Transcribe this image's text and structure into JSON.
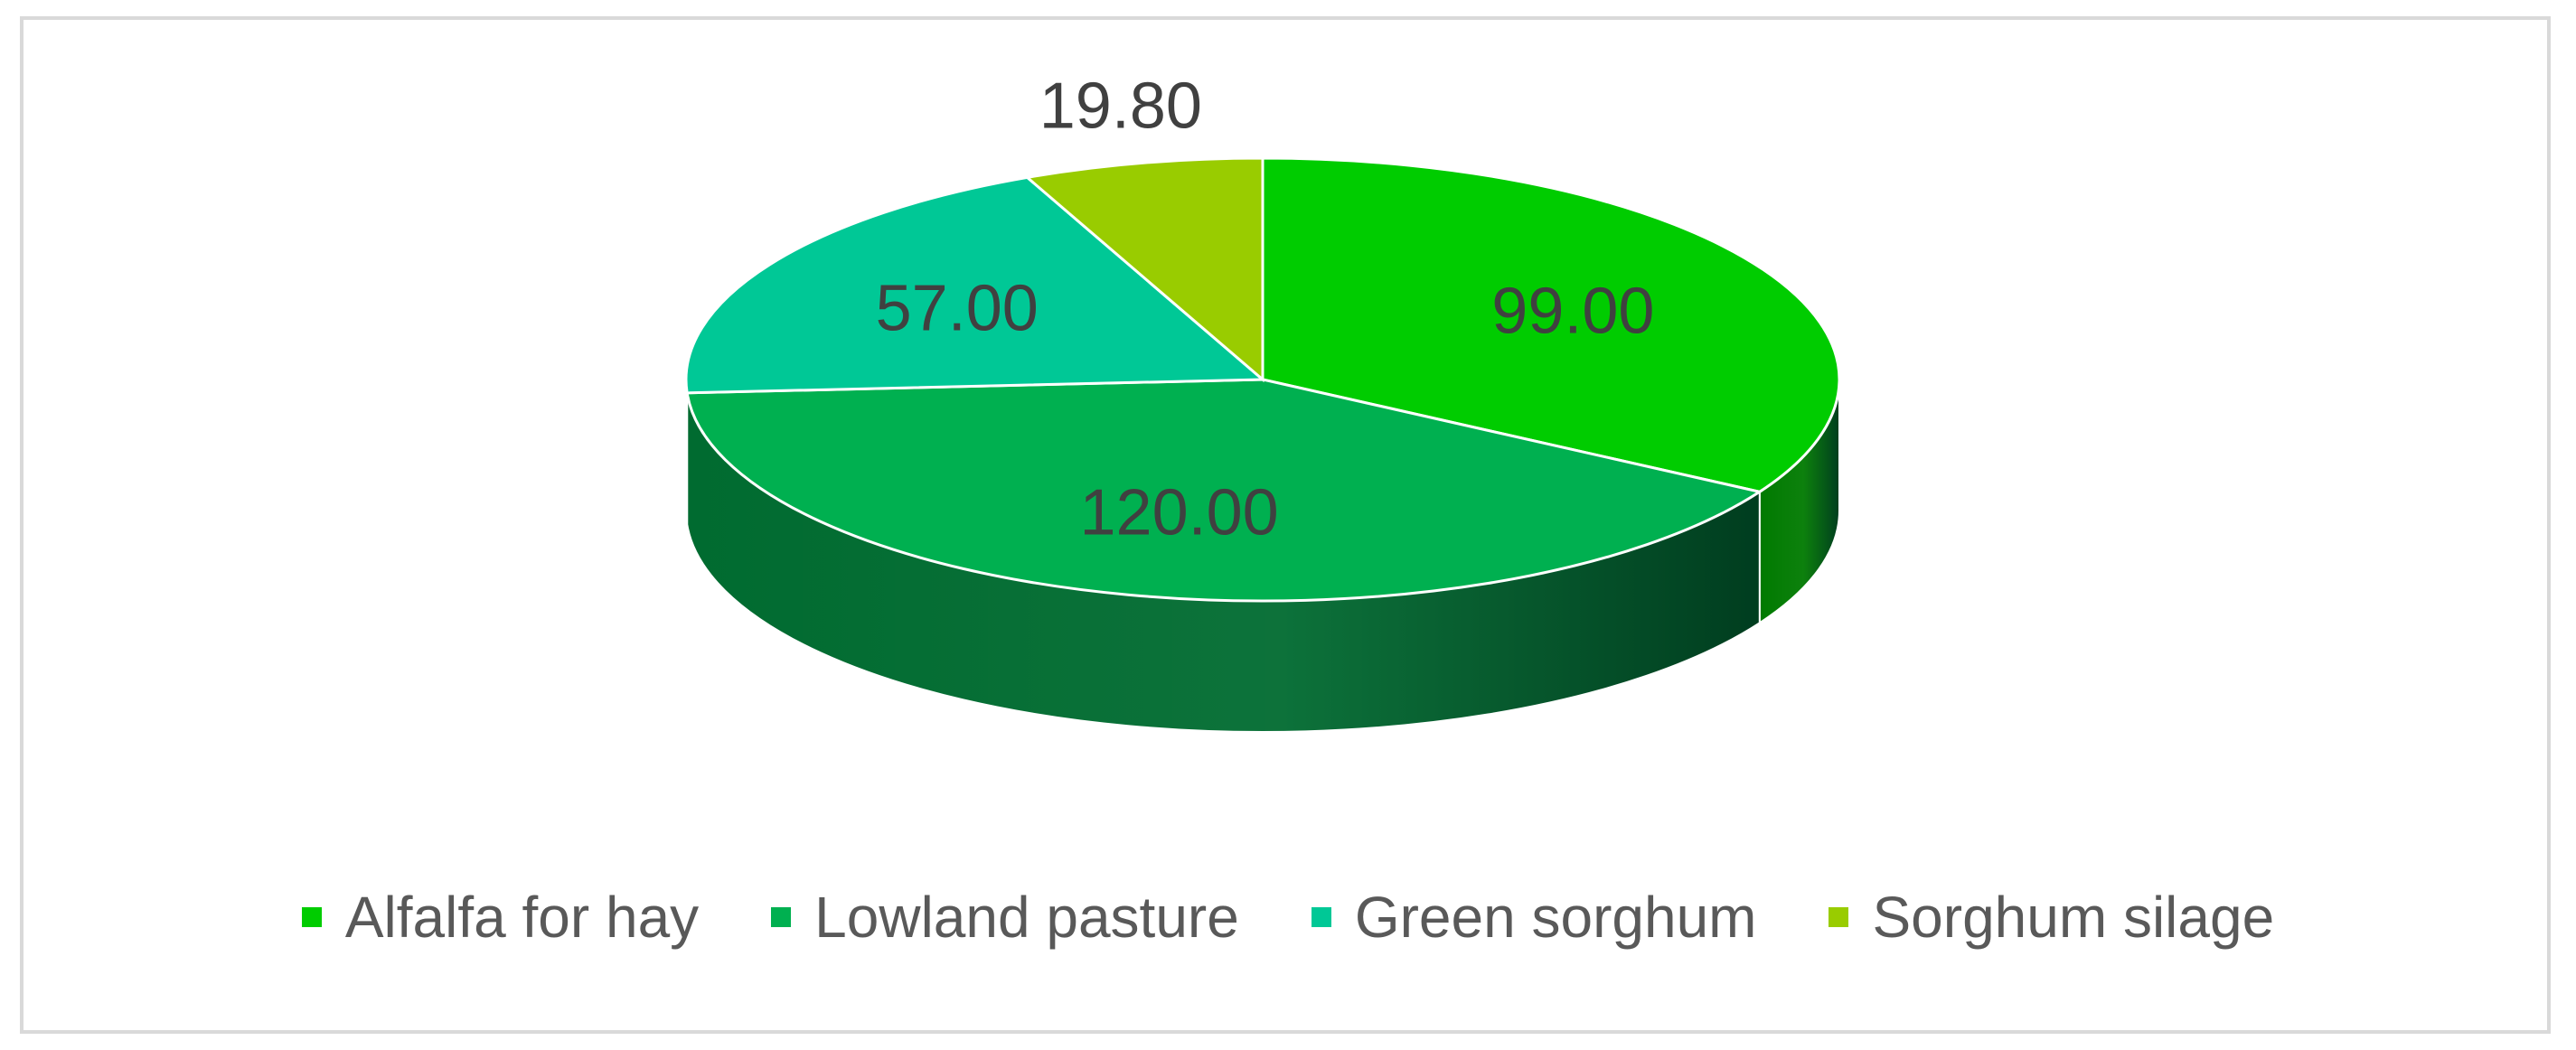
{
  "chart_data": {
    "type": "pie",
    "style": "3d",
    "categories": [
      "Alfalfa for hay",
      "Lowland pasture",
      "Green sorghum",
      "Sorghum silage"
    ],
    "values": [
      99.0,
      120.0,
      57.0,
      19.8
    ],
    "data_labels": [
      "99.00",
      "120.00",
      "57.00",
      "19.80"
    ],
    "colors": [
      "#00cc00",
      "#00b050",
      "#00c896",
      "#99cc00"
    ],
    "side_colors": [
      "#007a00",
      "#006b30",
      "#007a5c",
      "#5c7a00"
    ],
    "start_position": "12 o'clock, clockwise",
    "legend_position": "bottom"
  }
}
